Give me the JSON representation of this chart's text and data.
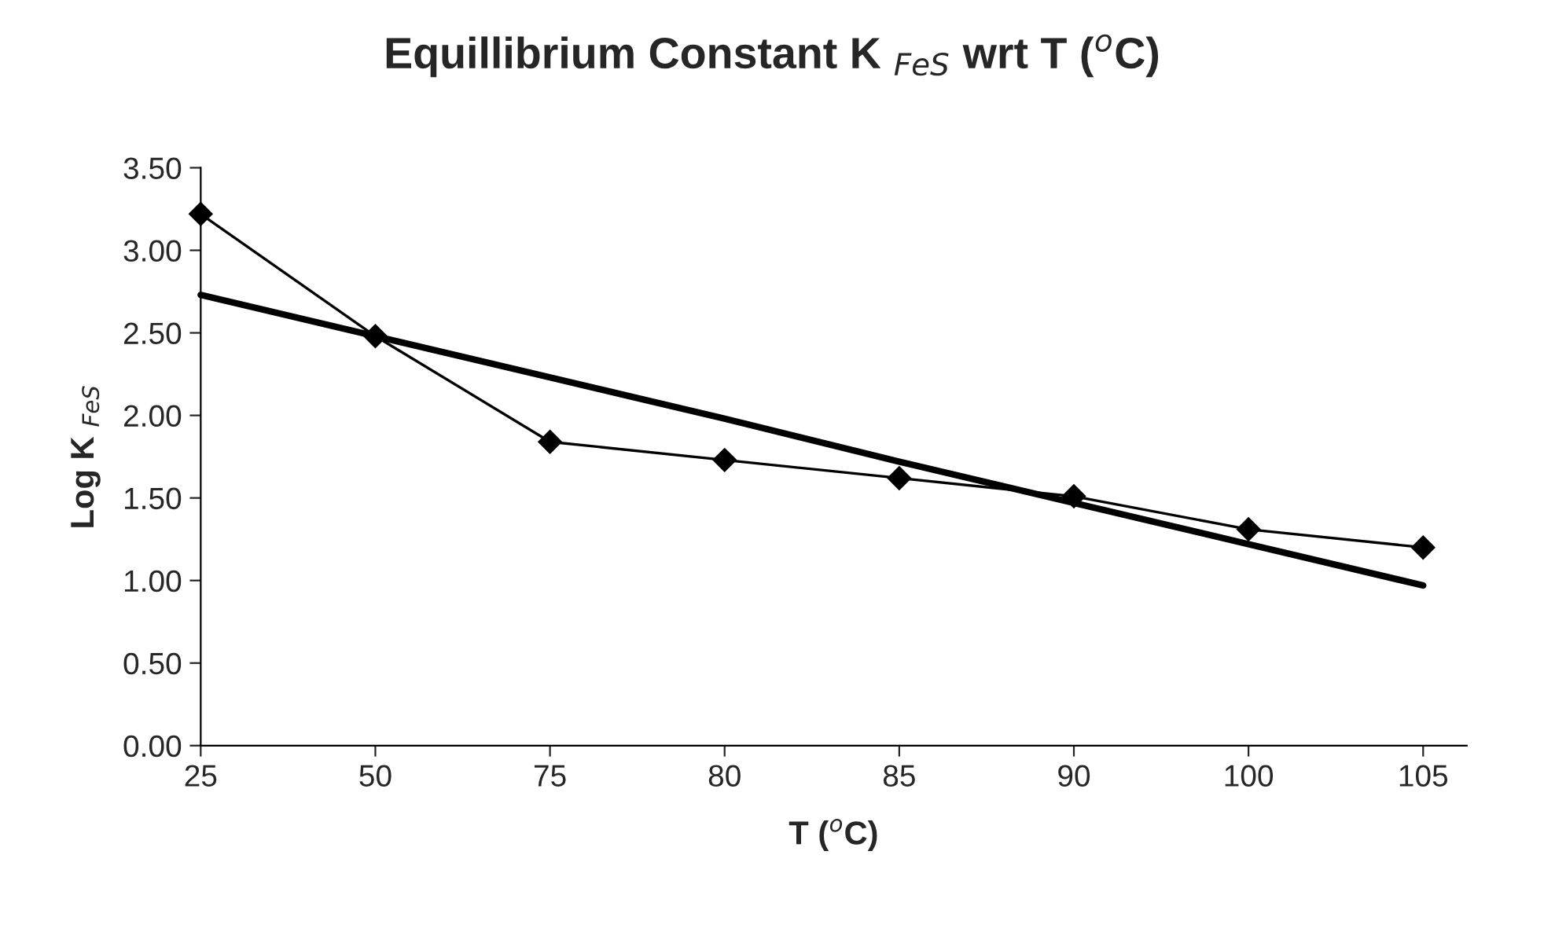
{
  "chart_data": {
    "type": "line",
    "title": "Equillibrium Constant K $_{FeS}$ wrt T ($^{o}$C)",
    "xlabel": "T ($^{o}$C)",
    "ylabel": "Log K $_{FeS}$",
    "categories": [
      "25",
      "50",
      "75",
      "80",
      "85",
      "90",
      "100",
      "105"
    ],
    "series": [
      {
        "color": "#000000",
        "marker": "diamond",
        "values": [
          3.22,
          2.48,
          1.84,
          1.73,
          1.62,
          1.51,
          1.31,
          1.2
        ]
      },
      {
        "color": "#000000",
        "marker": "none",
        "values": [
          2.73,
          2.48,
          2.23,
          1.98,
          1.72,
          1.47,
          1.22,
          0.97
        ]
      }
    ],
    "ylim": [
      0,
      3.5
    ],
    "yticks": [
      {
        "value": 0,
        "label": "0.00"
      },
      {
        "value": 0.5,
        "label": "0.50"
      },
      {
        "value": 1,
        "label": "1.00"
      },
      {
        "value": 1.5,
        "label": "1.50"
      },
      {
        "value": 2,
        "label": "2.00"
      },
      {
        "value": 2.5,
        "label": "2.50"
      },
      {
        "value": 3,
        "label": "3.00"
      },
      {
        "value": 3.5,
        "label": "3.50"
      }
    ],
    "grid": false,
    "legend": false
  }
}
